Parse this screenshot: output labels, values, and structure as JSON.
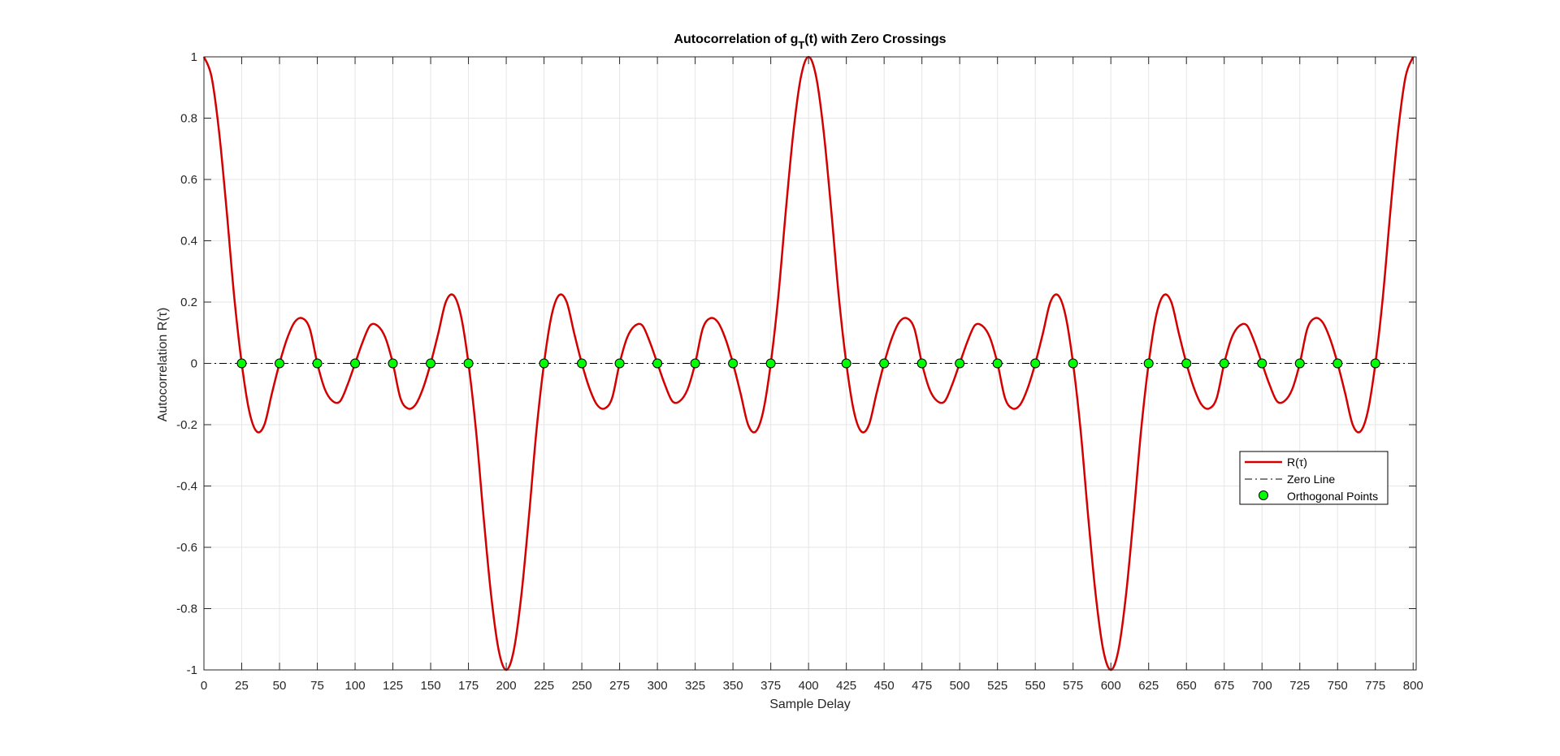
{
  "chart_data": {
    "type": "line",
    "title_parts": {
      "main": "Autocorrelation of g",
      "sub": "T",
      "rest": "(t) with Zero Crossings"
    },
    "xlabel": "Sample Delay",
    "ylabel": "Autocorrelation R(τ)",
    "xlim": [
      0,
      802
    ],
    "ylim": [
      -1,
      1
    ],
    "grid": true,
    "x_ticks": [
      0,
      25,
      50,
      75,
      100,
      125,
      150,
      175,
      200,
      225,
      250,
      275,
      300,
      325,
      350,
      375,
      400,
      425,
      450,
      475,
      500,
      525,
      550,
      575,
      600,
      625,
      650,
      675,
      700,
      725,
      750,
      775,
      800
    ],
    "y_ticks": [
      -1,
      -0.8,
      -0.6,
      -0.4,
      -0.2,
      0,
      0.2,
      0.4,
      0.6,
      0.8,
      1
    ],
    "y_tick_labels": [
      "-1",
      "-0.8",
      "-0.6",
      "-0.4",
      "-0.2",
      "0",
      "0.2",
      "0.4",
      "0.6",
      "0.8",
      "1"
    ],
    "legend_position": "right",
    "series": [
      {
        "name": "R(τ)",
        "style": "solid",
        "color": "#d40000",
        "x": [
          0,
          5,
          10,
          15,
          20,
          25,
          30,
          35,
          40,
          45,
          50,
          55,
          60,
          65,
          70,
          75,
          80,
          85,
          90,
          95,
          100,
          105,
          110,
          115,
          120,
          125,
          130,
          135,
          140,
          145,
          150,
          155,
          160,
          165,
          170,
          175,
          180,
          185,
          190,
          195,
          200,
          205,
          210,
          215,
          220,
          225,
          230,
          235,
          240,
          245,
          250,
          255,
          260,
          265,
          270,
          275,
          280,
          285,
          290,
          295,
          300,
          305,
          310,
          315,
          320,
          325,
          330,
          335,
          340,
          345,
          350,
          355,
          360,
          365,
          370,
          375,
          380,
          385,
          390,
          395,
          400,
          405,
          410,
          415,
          420,
          425,
          430,
          435,
          440,
          445,
          450,
          455,
          460,
          465,
          470,
          475,
          480,
          485,
          490,
          495,
          500,
          505,
          510,
          515,
          520,
          525,
          530,
          535,
          540,
          545,
          550,
          555,
          560,
          565,
          570,
          575,
          580,
          585,
          590,
          595,
          600,
          605,
          610,
          615,
          620,
          625,
          630,
          635,
          640,
          645,
          650,
          655,
          660,
          665,
          670,
          675,
          680,
          685,
          690,
          695,
          700,
          705,
          710,
          715,
          720,
          725,
          730,
          735,
          740,
          745,
          750,
          755,
          760,
          765,
          770,
          775,
          780,
          785,
          790,
          795,
          800
        ],
        "y": [
          1.0,
          0.9356,
          0.7564,
          0.5,
          0.2187,
          -0.0,
          -0.1564,
          -0.2226,
          -0.2,
          -0.0973,
          0.0,
          0.0806,
          0.1346,
          0.1473,
          0.1136,
          0.0,
          -0.0843,
          -0.1223,
          -0.124,
          -0.0698,
          0.0,
          0.0698,
          0.124,
          0.1223,
          0.0843,
          0.0,
          -0.1136,
          -0.1473,
          -0.1346,
          -0.0806,
          -0.0,
          0.0973,
          0.2,
          0.2226,
          0.1564,
          -0.0,
          -0.2187,
          -0.5,
          -0.7564,
          -0.9356,
          -1.0,
          -0.9356,
          -0.7564,
          -0.5,
          -0.2187,
          0.0,
          0.1564,
          0.2226,
          0.2,
          0.0973,
          0.0,
          -0.0806,
          -0.1346,
          -0.1473,
          -0.1136,
          -0.0,
          0.0843,
          0.1223,
          0.124,
          0.0698,
          0.0,
          -0.0698,
          -0.124,
          -0.1223,
          -0.0843,
          0.0,
          0.1136,
          0.1473,
          0.1346,
          0.0806,
          0.0,
          -0.0973,
          -0.2,
          -0.2226,
          -0.1564,
          0.0,
          0.2187,
          0.5,
          0.7564,
          0.9356,
          1.0,
          0.9356,
          0.7564,
          0.5,
          0.2187,
          0.0,
          -0.1564,
          -0.2226,
          -0.2,
          -0.0973,
          0.0,
          0.0806,
          0.1346,
          0.1473,
          0.1136,
          0.0,
          -0.0843,
          -0.1223,
          -0.124,
          -0.0698,
          0.0,
          0.0698,
          0.124,
          0.1223,
          0.0843,
          0.0,
          -0.1136,
          -0.1473,
          -0.1346,
          -0.0806,
          0.0,
          0.0973,
          0.2,
          0.2226,
          0.1564,
          0.0,
          -0.2187,
          -0.5,
          -0.7564,
          -0.9356,
          -1.0,
          -0.9356,
          -0.7564,
          -0.5,
          -0.2187,
          0.0,
          0.1564,
          0.2226,
          0.2,
          0.0973,
          0.0,
          -0.0806,
          -0.1346,
          -0.1473,
          -0.1136,
          0.0,
          0.0843,
          0.1223,
          0.124,
          0.0698,
          0.0,
          -0.0698,
          -0.124,
          -0.1223,
          -0.0843,
          0.0,
          0.1136,
          0.1473,
          0.1346,
          0.0806,
          0.0,
          -0.0973,
          -0.2,
          -0.2226,
          -0.1564,
          0.0,
          0.2187,
          0.5,
          0.7564,
          0.9356,
          1.0
        ]
      },
      {
        "name": "Zero Line",
        "style": "dash-dot",
        "color": "#000000",
        "x": [
          0,
          802
        ],
        "y": [
          0,
          0
        ]
      },
      {
        "name": "Orthogonal Points",
        "style": "markers",
        "color": "#00ff00",
        "edge_color": "#000000",
        "x": [
          25,
          50,
          75,
          100,
          125,
          150,
          175,
          225,
          250,
          275,
          300,
          325,
          350,
          375,
          425,
          450,
          475,
          500,
          525,
          550,
          575,
          625,
          650,
          675,
          700,
          725,
          750,
          775
        ],
        "y": [
          0,
          0,
          0,
          0,
          0,
          0,
          0,
          0,
          0,
          0,
          0,
          0,
          0,
          0,
          0,
          0,
          0,
          0,
          0,
          0,
          0,
          0,
          0,
          0,
          0,
          0,
          0,
          0
        ]
      }
    ],
    "colors": {
      "grid": "#e6e6e6",
      "axis": "#262626"
    }
  }
}
